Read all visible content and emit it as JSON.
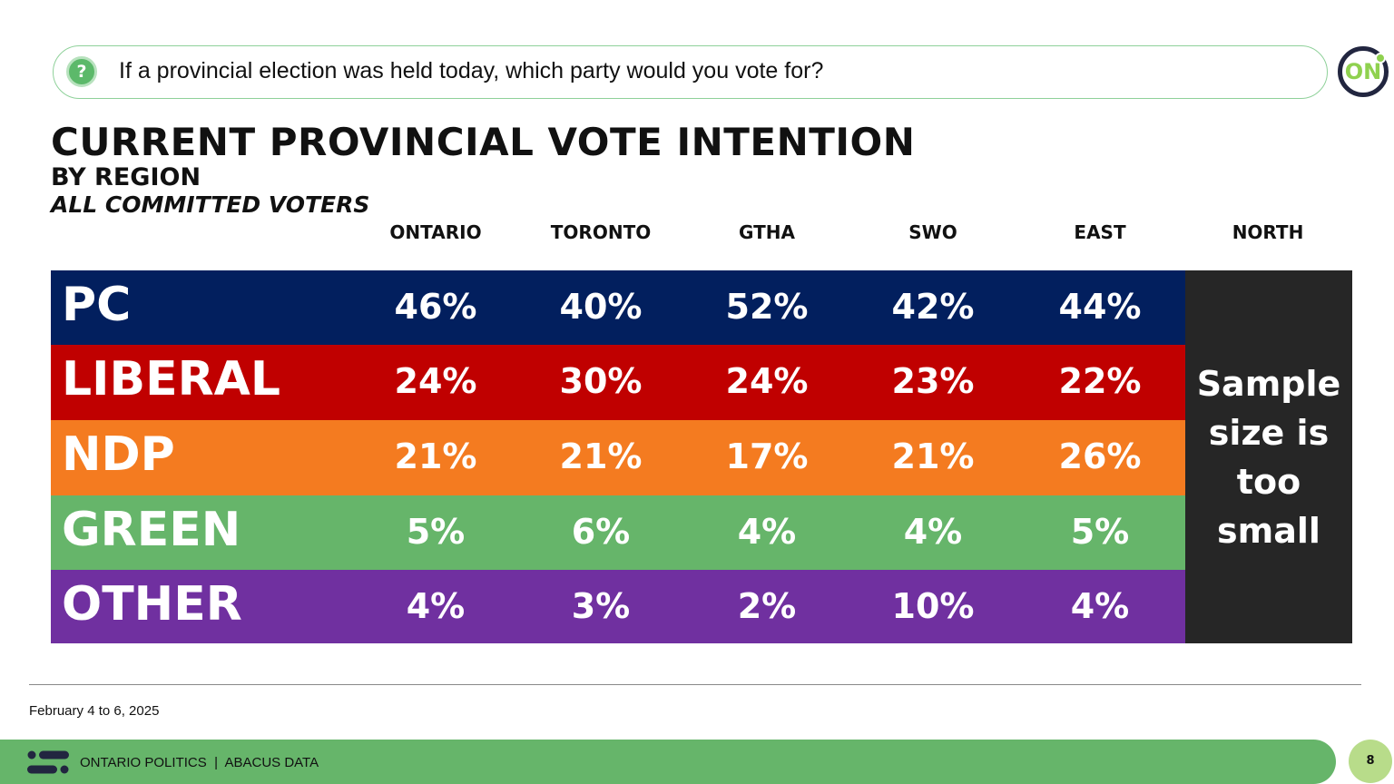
{
  "question": {
    "icon": "question-icon",
    "text": "If a provincial election was held today, which party would you vote for?"
  },
  "logo": {
    "text": "ON"
  },
  "title": "CURRENT PROVINCIAL VOTE INTENTION",
  "subtitle": "BY REGION",
  "subtitle2": "ALL COMMITTED VOTERS",
  "chart_data": {
    "type": "table",
    "columns": [
      "ONTARIO",
      "TORONTO",
      "GTHA",
      "SWO",
      "EAST",
      "NORTH"
    ],
    "rows": [
      {
        "party": "PC",
        "color": "#021f5e",
        "values": [
          "46%",
          "40%",
          "52%",
          "42%",
          "44%"
        ]
      },
      {
        "party": "LIBERAL",
        "color": "#c00000",
        "values": [
          "24%",
          "30%",
          "24%",
          "23%",
          "22%"
        ]
      },
      {
        "party": "NDP",
        "color": "#f47b20",
        "values": [
          "21%",
          "21%",
          "17%",
          "21%",
          "26%"
        ]
      },
      {
        "party": "GREEN",
        "color": "#66b56a",
        "values": [
          "5%",
          "6%",
          "4%",
          "4%",
          "5%"
        ]
      },
      {
        "party": "OTHER",
        "color": "#7030a0",
        "values": [
          "4%",
          "3%",
          "2%",
          "10%",
          "4%"
        ]
      }
    ],
    "north_note": "Sample size is too small"
  },
  "footer": {
    "date": "February 4 to 6, 2025",
    "brand": "ONTARIO POLITICS  |  ABACUS DATA",
    "page": "8"
  }
}
